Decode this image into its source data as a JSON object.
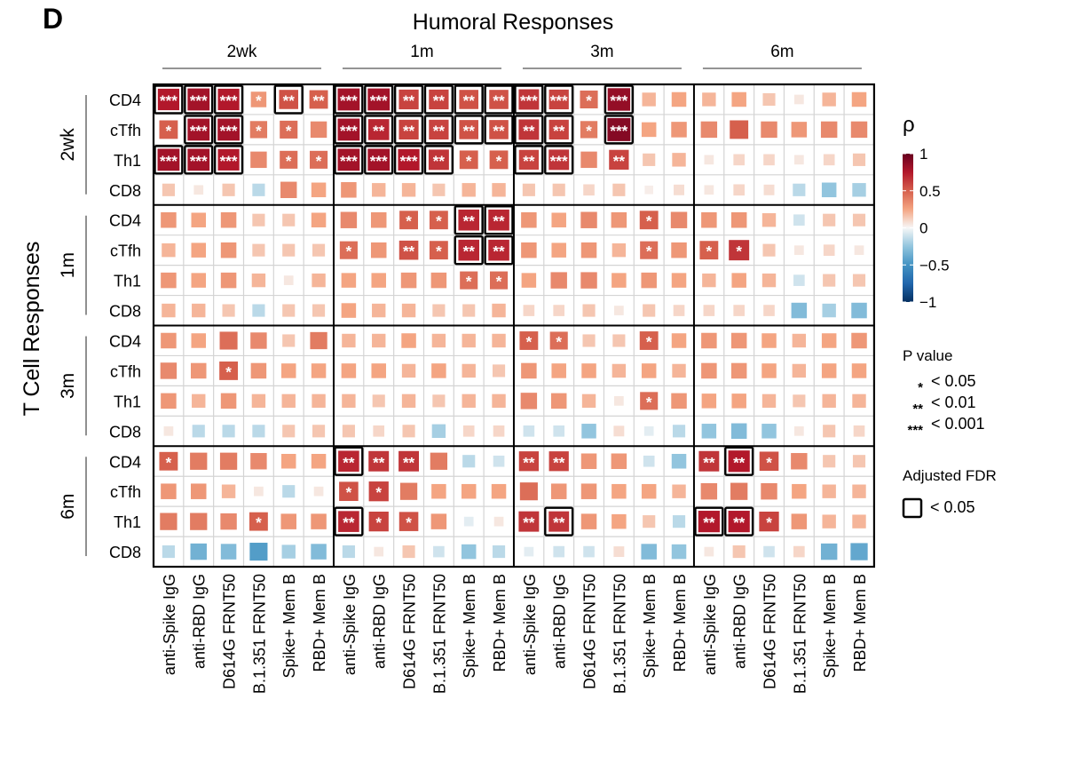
{
  "panel_label": "D",
  "chart_data": {
    "type": "heatmap",
    "title": "Humoral Responses",
    "ylabel": "T Cell Responses",
    "col_groups": [
      "2wk",
      "1m",
      "3m",
      "6m"
    ],
    "col_labels": [
      "anti-Spike IgG",
      "anti-RBD IgG",
      "D614G FRNT50",
      "B.1.351 FRNT50",
      "Spike+ Mem B",
      "RBD+ Mem B"
    ],
    "row_groups": [
      "2wk",
      "1m",
      "3m",
      "6m"
    ],
    "row_labels": [
      "CD4",
      "cTfh",
      "Th1",
      "CD8"
    ],
    "legend": {
      "color_title": "ρ",
      "color_ticks": [
        "1",
        "0.5",
        "0",
        "−0.5",
        "−1"
      ],
      "color_range": [
        -1,
        1
      ],
      "pvalue_title": "P value",
      "pvalue_entries": [
        {
          "symbol": "*",
          "label": "< 0.05"
        },
        {
          "symbol": "**",
          "label": "< 0.01"
        },
        {
          "symbol": "***",
          "label": "< 0.001"
        }
      ],
      "fdr_title": "Adjusted FDR",
      "fdr_label": "< 0.05"
    },
    "rho": [
      [
        0.75,
        0.8,
        0.75,
        0.3,
        0.55,
        0.5,
        0.8,
        0.8,
        0.6,
        0.6,
        0.55,
        0.55,
        0.65,
        0.6,
        0.45,
        0.85,
        0.2,
        0.25,
        0.2,
        0.25,
        0.15,
        0.05,
        0.2,
        0.25
      ],
      [
        0.5,
        0.8,
        0.8,
        0.4,
        0.45,
        0.35,
        0.8,
        0.7,
        0.6,
        0.6,
        0.55,
        0.55,
        0.65,
        0.6,
        0.4,
        0.9,
        0.25,
        0.3,
        0.35,
        0.5,
        0.35,
        0.3,
        0.35,
        0.35
      ],
      [
        0.8,
        0.8,
        0.75,
        0.35,
        0.45,
        0.45,
        0.8,
        0.8,
        0.75,
        0.65,
        0.5,
        0.5,
        0.6,
        0.65,
        0.35,
        0.6,
        0.15,
        0.2,
        0.05,
        0.1,
        0.1,
        0.05,
        0.1,
        0.15
      ],
      [
        0.15,
        0.05,
        0.15,
        -0.15,
        0.35,
        0.25,
        0.3,
        0.2,
        0.2,
        0.15,
        0.2,
        0.2,
        0.15,
        0.15,
        0.1,
        0.15,
        0.03,
        0.08,
        0.05,
        0.1,
        0.08,
        -0.15,
        -0.25,
        -0.2
      ],
      [
        0.3,
        0.25,
        0.3,
        0.15,
        0.15,
        0.25,
        0.35,
        0.3,
        0.5,
        0.5,
        0.7,
        0.7,
        0.3,
        0.25,
        0.35,
        0.3,
        0.5,
        0.35,
        0.3,
        0.3,
        0.2,
        -0.1,
        0.15,
        0.15
      ],
      [
        0.2,
        0.25,
        0.3,
        0.15,
        0.15,
        0.15,
        0.45,
        0.3,
        0.55,
        0.5,
        0.7,
        0.7,
        0.3,
        0.25,
        0.3,
        0.2,
        0.45,
        0.3,
        0.5,
        0.65,
        0.15,
        0.05,
        0.1,
        0.05
      ],
      [
        0.3,
        0.25,
        0.3,
        0.2,
        0.05,
        0.2,
        0.25,
        0.25,
        0.3,
        0.3,
        0.45,
        0.45,
        0.25,
        0.35,
        0.35,
        0.25,
        0.3,
        0.25,
        0.2,
        0.25,
        0.2,
        -0.1,
        0.15,
        0.15
      ],
      [
        0.2,
        0.2,
        0.15,
        -0.15,
        0.15,
        0.15,
        0.25,
        0.2,
        0.2,
        0.15,
        0.15,
        0.2,
        0.1,
        0.1,
        0.15,
        0.05,
        0.15,
        0.1,
        0.1,
        0.1,
        0.1,
        -0.3,
        -0.2,
        -0.3
      ],
      [
        0.3,
        0.25,
        0.45,
        0.35,
        0.15,
        0.4,
        0.2,
        0.2,
        0.25,
        0.2,
        0.2,
        0.2,
        0.5,
        0.45,
        0.15,
        0.15,
        0.5,
        0.25,
        0.3,
        0.3,
        0.25,
        0.2,
        0.25,
        0.3
      ],
      [
        0.35,
        0.3,
        0.5,
        0.3,
        0.25,
        0.25,
        0.25,
        0.25,
        0.2,
        0.25,
        0.2,
        0.15,
        0.3,
        0.25,
        0.25,
        0.2,
        0.25,
        0.2,
        0.3,
        0.3,
        0.25,
        0.2,
        0.25,
        0.25
      ],
      [
        0.3,
        0.2,
        0.3,
        0.2,
        0.2,
        0.2,
        0.2,
        0.15,
        0.2,
        0.15,
        0.2,
        0.2,
        0.35,
        0.3,
        0.2,
        0.05,
        0.45,
        0.3,
        0.25,
        0.25,
        0.2,
        0.15,
        0.2,
        0.2
      ],
      [
        0.05,
        -0.15,
        -0.15,
        -0.15,
        0.15,
        0.15,
        0.15,
        0.1,
        0.15,
        -0.2,
        0.1,
        0.1,
        -0.1,
        -0.1,
        -0.25,
        0.08,
        -0.05,
        -0.15,
        -0.25,
        -0.3,
        -0.25,
        0.05,
        0.15,
        0.1
      ],
      [
        0.5,
        0.4,
        0.4,
        0.35,
        0.25,
        0.25,
        0.7,
        0.65,
        0.65,
        0.4,
        -0.15,
        -0.1,
        0.6,
        0.6,
        0.3,
        0.3,
        -0.1,
        -0.25,
        0.65,
        0.75,
        0.55,
        0.35,
        0.15,
        0.15
      ],
      [
        0.3,
        0.3,
        0.2,
        0.05,
        -0.15,
        0.05,
        0.55,
        0.6,
        0.4,
        0.25,
        0.25,
        0.25,
        0.45,
        0.3,
        0.3,
        0.25,
        0.25,
        0.2,
        0.35,
        0.4,
        0.35,
        0.25,
        0.2,
        0.2
      ],
      [
        0.4,
        0.4,
        0.35,
        0.5,
        0.3,
        0.3,
        0.7,
        0.6,
        0.55,
        0.3,
        -0.05,
        0.05,
        0.65,
        0.65,
        0.3,
        0.25,
        0.15,
        -0.15,
        0.75,
        0.75,
        0.6,
        0.3,
        0.2,
        0.2
      ],
      [
        -0.15,
        -0.35,
        -0.3,
        -0.45,
        -0.2,
        -0.3,
        -0.15,
        0.05,
        0.15,
        -0.1,
        -0.25,
        -0.15,
        -0.05,
        -0.1,
        -0.1,
        0.08,
        -0.3,
        -0.25,
        0.05,
        0.15,
        -0.1,
        0.1,
        -0.35,
        -0.4
      ]
    ],
    "stars": [
      [
        "***",
        "***",
        "***",
        "*",
        "**",
        "**",
        "***",
        "***",
        "**",
        "**",
        "**",
        "**",
        "***",
        "***",
        "*",
        "***",
        "",
        ""
      ],
      [
        "*",
        "***",
        "***",
        "*",
        "*",
        "",
        "***",
        "**",
        "**",
        "**",
        "**",
        "**",
        "**",
        "**",
        "*",
        "***",
        "",
        ""
      ],
      [
        "***",
        "***",
        "***",
        "",
        "*",
        "*",
        "***",
        "***",
        "***",
        "**",
        "*",
        "*",
        "**",
        "***",
        "",
        "**",
        "",
        ""
      ],
      [],
      [
        "",
        "",
        "",
        "",
        "",
        "",
        "",
        "",
        "*",
        "*",
        "**",
        "**",
        "",
        "",
        "",
        "",
        "*",
        ""
      ],
      [
        "",
        "",
        "",
        "",
        "",
        "",
        "*",
        "",
        "**",
        "*",
        "**",
        "**",
        "",
        "",
        "",
        "",
        "*",
        "",
        "*",
        "*",
        "",
        "",
        "",
        ""
      ],
      [
        "",
        "",
        "",
        "",
        "",
        "",
        "",
        "",
        "",
        "",
        "*",
        "*"
      ],
      [],
      [
        "",
        "",
        "",
        "",
        "",
        "",
        "",
        "",
        "",
        "",
        "",
        "",
        "*",
        "*",
        "",
        "",
        "*",
        ""
      ],
      [
        "",
        "",
        "*"
      ],
      [
        "",
        "",
        "",
        "",
        "",
        "",
        "",
        "",
        "",
        "",
        "",
        "",
        "",
        "",
        "",
        "",
        "*",
        ""
      ],
      [],
      [
        "*",
        "",
        "",
        "",
        "",
        "",
        "**",
        "**",
        "**",
        "",
        "",
        "",
        "**",
        "**",
        "",
        "",
        "",
        "",
        "**",
        "**",
        "*",
        "",
        "",
        ""
      ],
      [
        "",
        "",
        "",
        "",
        "",
        "",
        "*",
        "*"
      ],
      [
        "",
        "",
        "",
        "*",
        "",
        "",
        "**",
        "*",
        "*",
        "",
        "",
        "",
        "**",
        "**",
        "",
        "",
        "",
        "",
        "**",
        "**",
        "*",
        "",
        "",
        ""
      ],
      []
    ],
    "fdr": [
      [
        1,
        1,
        1,
        0,
        1,
        0,
        1,
        1,
        1,
        1,
        1,
        1,
        1,
        1,
        0,
        1,
        0,
        0
      ],
      [
        0,
        1,
        1,
        0,
        0,
        0,
        1,
        1,
        1,
        1,
        1,
        1,
        1,
        1,
        0,
        1,
        0,
        0
      ],
      [
        1,
        1,
        1,
        0,
        0,
        0,
        1,
        1,
        1,
        1,
        0,
        0,
        1,
        1,
        0,
        0,
        0,
        0
      ],
      [],
      [
        0,
        0,
        0,
        0,
        0,
        0,
        0,
        0,
        0,
        0,
        1,
        1
      ],
      [
        0,
        0,
        0,
        0,
        0,
        0,
        0,
        0,
        0,
        0,
        1,
        1
      ],
      [],
      [],
      [],
      [],
      [],
      [],
      [
        0,
        0,
        0,
        0,
        0,
        0,
        1,
        0,
        0,
        0,
        0,
        0,
        0,
        0,
        0,
        0,
        0,
        0,
        0,
        1,
        0,
        0,
        0,
        0
      ],
      [],
      [
        0,
        0,
        0,
        0,
        0,
        0,
        1,
        0,
        0,
        0,
        0,
        0,
        0,
        1,
        0,
        0,
        0,
        0,
        1,
        1,
        0,
        0,
        0,
        0
      ],
      []
    ]
  }
}
